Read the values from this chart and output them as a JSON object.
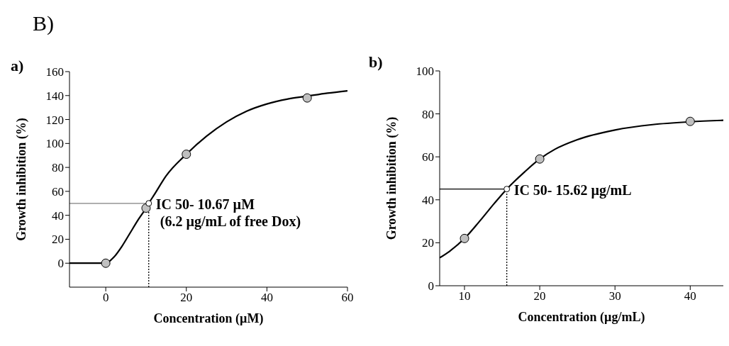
{
  "chart_data": [
    {
      "type": "line",
      "title": "a)",
      "annotations": [
        "B)",
        {
          "text": "IC 50- 10.67 µM\n(6.2 µg/mL of free Dox)",
          "x": 10.67,
          "y": 50
        }
      ],
      "xlabel": "Concentration (µM)",
      "ylabel": "Growth inhibition (%)",
      "xlim": [
        -9,
        60
      ],
      "xticks": [
        0,
        20,
        40,
        60
      ],
      "ylim": [
        -20,
        160
      ],
      "yticks": [
        0,
        20,
        40,
        60,
        80,
        100,
        120,
        140,
        160
      ],
      "grid": false,
      "series": [
        {
          "color": "#000000",
          "marker": "none",
          "line_style": "solid",
          "x": [
            -9,
            -4,
            0,
            2,
            4,
            6,
            8,
            10,
            10.67,
            12,
            15,
            20,
            25,
            30,
            35,
            40,
            45,
            50,
            55,
            60
          ],
          "values": [
            0,
            0,
            0,
            5,
            14,
            25,
            36,
            46,
            50,
            57,
            73,
            91,
            106,
            118,
            127,
            133,
            137,
            139.5,
            142,
            144
          ]
        },
        {
          "type": "line",
          "color": "#808080",
          "marker": "none",
          "line_style": "solid",
          "x": [
            -9,
            10.67
          ],
          "values": [
            50,
            50
          ]
        },
        {
          "type": "line",
          "color": "#000000",
          "marker": "none",
          "line_style": "dotted",
          "x": [
            10.67,
            10.67
          ],
          "values": [
            -20,
            50
          ]
        },
        {
          "type": "scatter",
          "color": "#c0c0c0",
          "marker": "circle",
          "x": [
            0,
            10,
            20,
            50
          ],
          "values": [
            0,
            46,
            91,
            138
          ]
        },
        {
          "type": "scatter",
          "color": "#ffffff",
          "marker": "circle",
          "x": [
            10.67
          ],
          "values": [
            50
          ]
        }
      ]
    },
    {
      "type": "line",
      "title": "b)",
      "annotations": [
        {
          "text": "IC 50- 15.62 µg/mL",
          "x": 15.62,
          "y": 45
        }
      ],
      "xlabel": "Concentration (µg/mL)",
      "ylabel": "Growth inhibition (%)",
      "xlim": [
        6.7,
        44.4
      ],
      "xticks": [
        10,
        20,
        30,
        40
      ],
      "ylim": [
        0,
        100
      ],
      "yticks": [
        0,
        20,
        40,
        60,
        80,
        100
      ],
      "grid": false,
      "series": [
        {
          "color": "#000000",
          "marker": "none",
          "line_style": "solid",
          "x": [
            6.7,
            8,
            10,
            12,
            14,
            15.62,
            18,
            20,
            22,
            25,
            30,
            35,
            40,
            44.4
          ],
          "values": [
            13,
            16,
            22,
            30,
            38.5,
            45,
            53,
            59,
            63.5,
            68,
            72.5,
            75,
            76.3,
            77
          ]
        },
        {
          "type": "line",
          "color": "#000000",
          "marker": "none",
          "line_style": "solid",
          "x": [
            6.7,
            15.62
          ],
          "values": [
            45,
            45
          ]
        },
        {
          "type": "line",
          "color": "#000000",
          "marker": "none",
          "line_style": "dotted",
          "x": [
            15.62,
            15.62
          ],
          "values": [
            0,
            45
          ]
        },
        {
          "type": "scatter",
          "color": "#c0c0c0",
          "marker": "circle",
          "x": [
            10,
            20,
            40
          ],
          "values": [
            22,
            59,
            76.5
          ]
        },
        {
          "type": "scatter",
          "color": "#ffffff",
          "marker": "circle",
          "x": [
            15.62
          ],
          "values": [
            45
          ]
        }
      ]
    }
  ]
}
